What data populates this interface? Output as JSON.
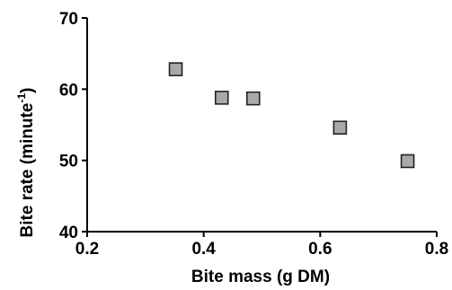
{
  "chart_data": {
    "type": "scatter",
    "xlabel": "Bite mass (g DM)",
    "ylabel_main": "Bite rate (minute",
    "ylabel_sup": "-1",
    "ylabel_close": ")",
    "xlim": [
      0.2,
      0.8
    ],
    "ylim": [
      40,
      70
    ],
    "xticks": [
      0.2,
      0.4,
      0.6,
      0.8
    ],
    "xtick_labels": [
      "0.2",
      "0.4",
      "0.6",
      "0.8"
    ],
    "yticks": [
      40,
      50,
      60,
      70
    ],
    "ytick_labels": [
      "40",
      "50",
      "60",
      "70"
    ],
    "grid": false,
    "marker": "square",
    "marker_color": "#a9a9a9",
    "points": [
      {
        "x": 0.352,
        "y": 62.8
      },
      {
        "x": 0.431,
        "y": 58.8
      },
      {
        "x": 0.485,
        "y": 58.7
      },
      {
        "x": 0.634,
        "y": 54.6
      },
      {
        "x": 0.75,
        "y": 49.9
      }
    ]
  }
}
